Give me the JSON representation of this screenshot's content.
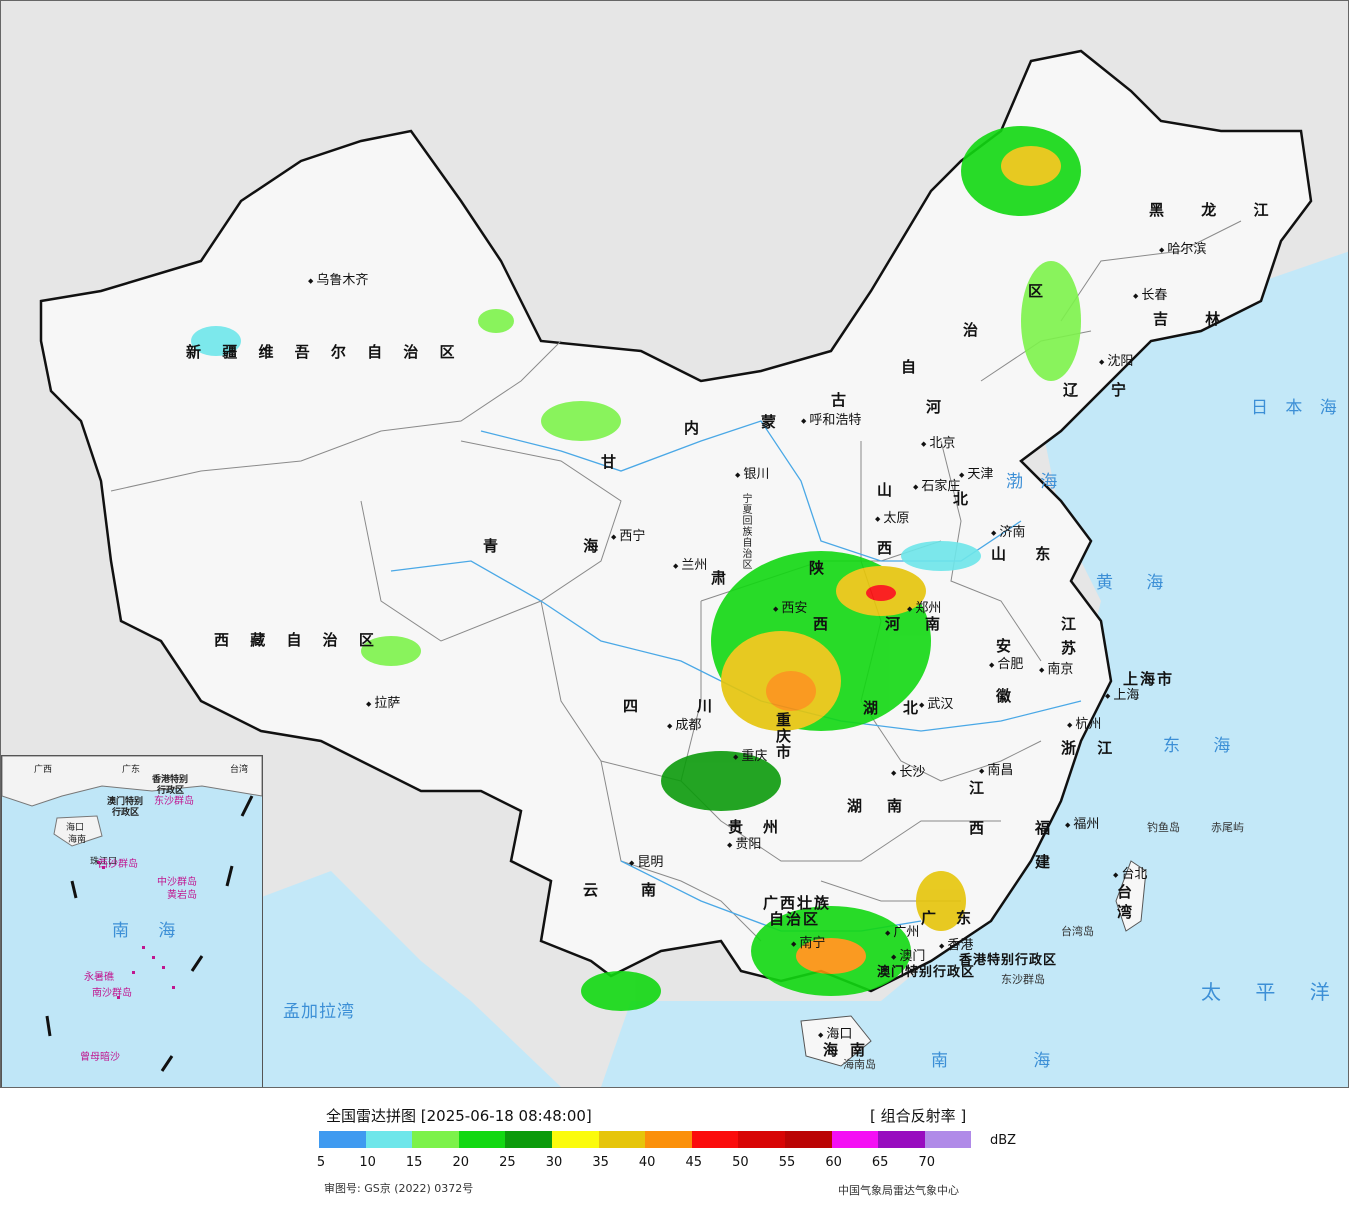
{
  "map": {
    "provinces": [
      "新 疆 维 吾 尔 自 治 区",
      "西 藏 自 治 区",
      "青 海",
      "甘",
      "肃",
      "内",
      "蒙",
      "古",
      "黑 龙 江",
      "吉 林",
      "辽",
      "宁",
      "河",
      "北",
      "山",
      "西",
      "山 东",
      "陕",
      "西",
      "河",
      "南",
      "四",
      "川",
      "重",
      "庆",
      "市",
      "湖",
      "北",
      "湖",
      "南",
      "江",
      "西",
      "安",
      "徽",
      "江",
      "苏",
      "浙 江",
      "福",
      "建",
      "贵",
      "州",
      "云",
      "南",
      "广西壮族",
      "自治区",
      "广",
      "东",
      "海",
      "南",
      "上海市",
      "台",
      "湾",
      "宁夏回族自治区",
      "区",
      "自",
      "治"
    ],
    "cities": [
      "乌鲁木齐",
      "拉萨",
      "西宁",
      "兰州",
      "银川",
      "呼和浩特",
      "北京",
      "天津",
      "石家庄",
      "太原",
      "济南",
      "郑州",
      "西安",
      "成都",
      "重庆",
      "武汉",
      "合肥",
      "南京",
      "上海",
      "杭州",
      "南昌",
      "长沙",
      "贵阳",
      "昆明",
      "南宁",
      "广州",
      "香港",
      "澳门",
      "海口",
      "福州",
      "台北",
      "哈尔滨",
      "长春",
      "沈阳"
    ],
    "seas": [
      "日 本 海",
      "渤 海",
      "黄 海",
      "东 海",
      "太 平 洋",
      "南 海",
      "孟加拉湾"
    ],
    "islands": [
      "钓鱼岛",
      "赤尾屿",
      "台湾岛",
      "东沙群岛",
      "海南岛",
      "香港特别行政区",
      "澳门特别行政区"
    ],
    "inset": {
      "sea": "南 海",
      "islands": [
        "东沙群岛",
        "西沙群岛",
        "中沙群岛",
        "黄岩岛",
        "南沙群岛",
        "曾母暗沙",
        "永暑礁"
      ],
      "labels": [
        "广西",
        "广东",
        "台湾",
        "海口",
        "海南",
        "香港特别",
        "行政区",
        "澳门特别",
        "行政区",
        "珠江口"
      ]
    }
  },
  "legend": {
    "title": "全国雷达拼图 [2025-06-18 08:48:00]",
    "product": "[ 组合反射率 ]",
    "unit": "dBZ",
    "colors": [
      "#3f9af0",
      "#6ee6ea",
      "#7cf24a",
      "#12d812",
      "#0b9a0b",
      "#fbfb0c",
      "#e6c50a",
      "#fb900a",
      "#fb0c0c",
      "#d80505",
      "#bb0404",
      "#f40ff4",
      "#980cbf",
      "#b08ae8"
    ],
    "ticks": [
      "5",
      "10",
      "15",
      "20",
      "25",
      "30",
      "35",
      "40",
      "45",
      "50",
      "55",
      "60",
      "65",
      "70"
    ],
    "approval": "审图号: GS京 (2022) 0372号",
    "publisher": "中国气象局雷达气象中心"
  }
}
